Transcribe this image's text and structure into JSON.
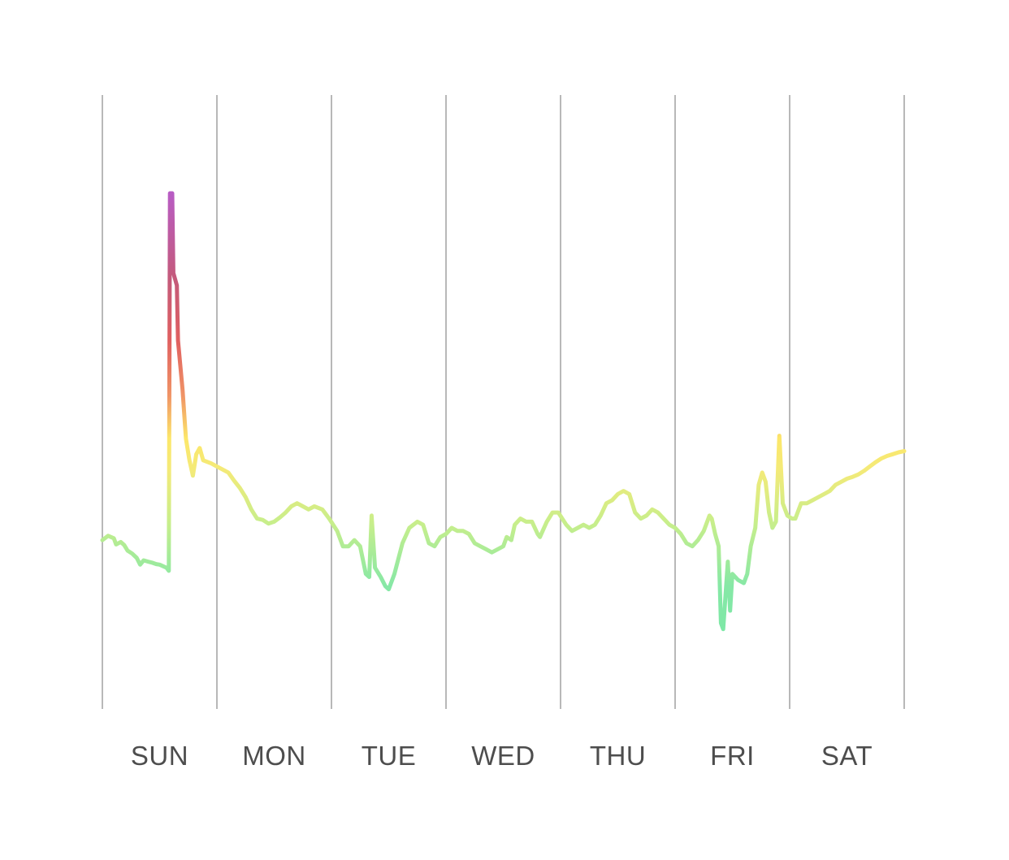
{
  "chart_data": {
    "type": "line",
    "title": "",
    "xlabel": "",
    "ylabel": "",
    "grid": "vertical day separators",
    "legend": "none",
    "categories": [
      "SUN",
      "MON",
      "TUE",
      "WED",
      "THU",
      "FRI",
      "SAT"
    ],
    "xlim": [
      0,
      7
    ],
    "ylim": [
      0,
      100
    ],
    "colors": {
      "low": "#6ee7a8",
      "mid_low": "#c6ee8c",
      "mid": "#fce76a",
      "mid_high": "#f09466",
      "high": "#e06060",
      "peak": "#b85cc4",
      "grid": "#b8b8b8",
      "label": "#4d4d4d"
    },
    "series": [
      {
        "points": [
          [
            0.0,
            27.5
          ],
          [
            0.05,
            28.2
          ],
          [
            0.1,
            27.8
          ],
          [
            0.12,
            26.8
          ],
          [
            0.16,
            27.2
          ],
          [
            0.19,
            26.7
          ],
          [
            0.22,
            25.8
          ],
          [
            0.26,
            25.3
          ],
          [
            0.3,
            24.6
          ],
          [
            0.33,
            23.5
          ],
          [
            0.36,
            24.2
          ],
          [
            0.4,
            24.0
          ],
          [
            0.44,
            23.8
          ],
          [
            0.47,
            23.6
          ],
          [
            0.5,
            23.5
          ],
          [
            0.56,
            23.0
          ],
          [
            0.58,
            22.5
          ],
          [
            0.59,
            84.0
          ],
          [
            0.61,
            84.0
          ],
          [
            0.62,
            71.0
          ],
          [
            0.65,
            69.0
          ],
          [
            0.66,
            60.0
          ],
          [
            0.68,
            56.0
          ],
          [
            0.7,
            52.0
          ],
          [
            0.73,
            44.0
          ],
          [
            0.76,
            40.5
          ],
          [
            0.79,
            38.0
          ],
          [
            0.82,
            41.5
          ],
          [
            0.85,
            42.5
          ],
          [
            0.88,
            40.5
          ],
          [
            0.95,
            40.0
          ],
          [
            1.0,
            39.5
          ],
          [
            1.05,
            39.0
          ],
          [
            1.1,
            38.5
          ],
          [
            1.15,
            37.2
          ],
          [
            1.2,
            36.0
          ],
          [
            1.25,
            34.5
          ],
          [
            1.3,
            32.5
          ],
          [
            1.35,
            31.0
          ],
          [
            1.4,
            30.8
          ],
          [
            1.45,
            30.2
          ],
          [
            1.5,
            30.5
          ],
          [
            1.55,
            31.2
          ],
          [
            1.6,
            32.0
          ],
          [
            1.65,
            33.0
          ],
          [
            1.7,
            33.5
          ],
          [
            1.75,
            33.0
          ],
          [
            1.8,
            32.5
          ],
          [
            1.85,
            33.0
          ],
          [
            1.92,
            32.5
          ],
          [
            1.98,
            31.0
          ],
          [
            2.05,
            29.0
          ],
          [
            2.1,
            26.5
          ],
          [
            2.15,
            26.5
          ],
          [
            2.2,
            27.5
          ],
          [
            2.25,
            26.5
          ],
          [
            2.3,
            22.0
          ],
          [
            2.33,
            21.5
          ],
          [
            2.35,
            31.5
          ],
          [
            2.38,
            23.0
          ],
          [
            2.43,
            21.5
          ],
          [
            2.47,
            20.0
          ],
          [
            2.5,
            19.5
          ],
          [
            2.55,
            22.0
          ],
          [
            2.62,
            27.0
          ],
          [
            2.68,
            29.5
          ],
          [
            2.75,
            30.5
          ],
          [
            2.8,
            30.0
          ],
          [
            2.85,
            27.0
          ],
          [
            2.9,
            26.5
          ],
          [
            2.95,
            28.0
          ],
          [
            3.0,
            28.5
          ],
          [
            3.05,
            29.5
          ],
          [
            3.1,
            29.0
          ],
          [
            3.15,
            29.0
          ],
          [
            3.2,
            28.5
          ],
          [
            3.25,
            27.0
          ],
          [
            3.3,
            26.5
          ],
          [
            3.35,
            26.0
          ],
          [
            3.4,
            25.5
          ],
          [
            3.45,
            26.0
          ],
          [
            3.5,
            26.5
          ],
          [
            3.53,
            28.0
          ],
          [
            3.57,
            27.5
          ],
          [
            3.6,
            30.0
          ],
          [
            3.65,
            31.0
          ],
          [
            3.7,
            30.5
          ],
          [
            3.75,
            30.5
          ],
          [
            3.8,
            28.5
          ],
          [
            3.82,
            28.0
          ],
          [
            3.88,
            30.5
          ],
          [
            3.93,
            32.0
          ],
          [
            3.98,
            32.0
          ],
          [
            4.05,
            30.0
          ],
          [
            4.1,
            29.0
          ],
          [
            4.15,
            29.5
          ],
          [
            4.2,
            30.0
          ],
          [
            4.25,
            29.5
          ],
          [
            4.3,
            30.0
          ],
          [
            4.35,
            31.5
          ],
          [
            4.4,
            33.5
          ],
          [
            4.45,
            34.0
          ],
          [
            4.5,
            35.0
          ],
          [
            4.55,
            35.5
          ],
          [
            4.6,
            35.0
          ],
          [
            4.65,
            32.0
          ],
          [
            4.7,
            31.0
          ],
          [
            4.75,
            31.5
          ],
          [
            4.8,
            32.5
          ],
          [
            4.85,
            32.0
          ],
          [
            4.9,
            31.0
          ],
          [
            4.95,
            30.0
          ],
          [
            5.0,
            29.5
          ],
          [
            5.05,
            28.5
          ],
          [
            5.1,
            27.0
          ],
          [
            5.15,
            26.5
          ],
          [
            5.2,
            27.5
          ],
          [
            5.25,
            29.0
          ],
          [
            5.3,
            31.5
          ],
          [
            5.32,
            31.0
          ],
          [
            5.35,
            28.5
          ],
          [
            5.38,
            26.5
          ],
          [
            5.4,
            14.0
          ],
          [
            5.42,
            13.0
          ],
          [
            5.46,
            24.0
          ],
          [
            5.48,
            16.0
          ],
          [
            5.5,
            22.0
          ],
          [
            5.55,
            21.0
          ],
          [
            5.6,
            20.5
          ],
          [
            5.63,
            22.0
          ],
          [
            5.66,
            26.5
          ],
          [
            5.7,
            29.5
          ],
          [
            5.73,
            36.5
          ],
          [
            5.76,
            38.5
          ],
          [
            5.79,
            37.0
          ],
          [
            5.82,
            32.0
          ],
          [
            5.85,
            29.5
          ],
          [
            5.88,
            30.5
          ],
          [
            5.91,
            44.5
          ],
          [
            5.94,
            33.5
          ],
          [
            5.98,
            31.5
          ],
          [
            6.02,
            31.0
          ],
          [
            6.05,
            31.0
          ],
          [
            6.1,
            33.5
          ],
          [
            6.15,
            33.5
          ],
          [
            6.2,
            34.0
          ],
          [
            6.25,
            34.5
          ],
          [
            6.3,
            35.0
          ],
          [
            6.35,
            35.5
          ],
          [
            6.4,
            36.5
          ],
          [
            6.45,
            37.0
          ],
          [
            6.5,
            37.5
          ],
          [
            6.55,
            37.8
          ],
          [
            6.6,
            38.2
          ],
          [
            6.65,
            38.8
          ],
          [
            6.7,
            39.5
          ],
          [
            6.75,
            40.2
          ],
          [
            6.8,
            40.8
          ],
          [
            6.85,
            41.2
          ],
          [
            6.9,
            41.5
          ],
          [
            6.95,
            41.8
          ],
          [
            7.0,
            42.0
          ]
        ]
      }
    ]
  }
}
